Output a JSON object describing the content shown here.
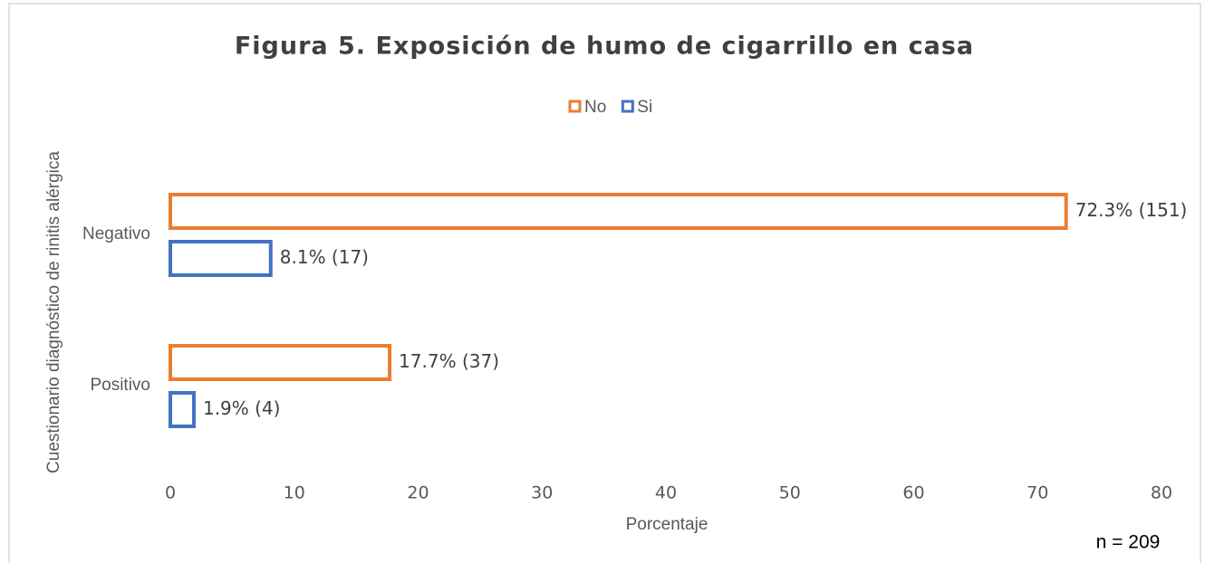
{
  "chart_data": {
    "type": "bar",
    "orientation": "horizontal",
    "title": "Figura 5. Exposición de humo de cigarrillo en casa",
    "categories": [
      "Negativo",
      "Positivo"
    ],
    "series": [
      {
        "name": "No",
        "color": "#ed7d31",
        "values": [
          72.3,
          17.7
        ],
        "value_labels": [
          "72.3% (151)",
          "17.7% (37)"
        ]
      },
      {
        "name": "Si",
        "color": "#4472c4",
        "values": [
          8.1,
          1.9
        ],
        "value_labels": [
          "8.1% (17)",
          "1.9% (4)"
        ]
      }
    ],
    "xlim": [
      0,
      80
    ],
    "xticks": [
      0,
      10,
      20,
      30,
      40,
      50,
      60,
      70,
      80
    ],
    "xlabel": "Porcentaje",
    "ylabel": "Cuestionario diagnóstico de rinitis alérgica",
    "annotation": "n = 209",
    "legend": "top"
  }
}
